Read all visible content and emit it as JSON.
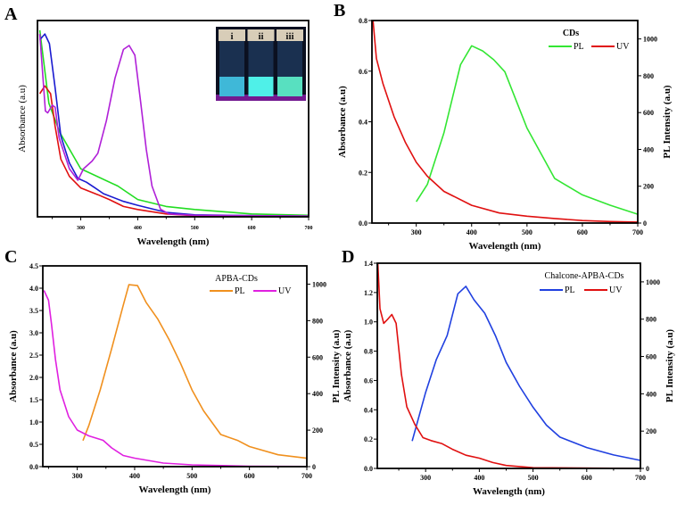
{
  "chart_data": [
    {
      "panel": "A",
      "type": "line",
      "xlabel": "Wavelength (nm)",
      "ylabel": "Absorbance (a.u)",
      "xlim": [
        224,
        700
      ],
      "ylim": [
        0,
        1.02
      ],
      "xticks": [
        300,
        400,
        500,
        600,
        700
      ],
      "yticks": [],
      "grid": false,
      "inset_labels": [
        "i",
        "ii",
        "iii"
      ],
      "series": [
        {
          "color": "#22dd22",
          "x": [
            228,
            244,
            263,
            300,
            365,
            400,
            450,
            500,
            600,
            700
          ],
          "y": [
            0.97,
            0.59,
            0.44,
            0.25,
            0.16,
            0.09,
            0.054,
            0.038,
            0.015,
            0.008
          ]
        },
        {
          "color": "#1a1ad0",
          "x": [
            228,
            237,
            245,
            255,
            265,
            280,
            295,
            310,
            325,
            340,
            375,
            400,
            450,
            500,
            700
          ],
          "y": [
            0.92,
            0.95,
            0.9,
            0.67,
            0.42,
            0.28,
            0.2,
            0.18,
            0.15,
            0.12,
            0.08,
            0.06,
            0.023,
            0.01,
            0.003
          ]
        },
        {
          "color": "#e01010",
          "x": [
            228,
            237,
            247,
            255,
            265,
            280,
            300,
            330,
            350,
            375,
            400,
            450,
            500,
            700
          ],
          "y": [
            0.64,
            0.68,
            0.64,
            0.47,
            0.3,
            0.21,
            0.15,
            0.115,
            0.09,
            0.054,
            0.038,
            0.015,
            0.006,
            0.002
          ]
        },
        {
          "color": "#b020d8",
          "x": [
            228,
            238,
            242,
            250,
            255,
            262,
            280,
            295,
            305,
            320,
            330,
            345,
            360,
            375,
            385,
            395,
            405,
            415,
            425,
            440,
            455,
            500,
            700
          ],
          "y": [
            0.95,
            0.55,
            0.54,
            0.58,
            0.57,
            0.41,
            0.25,
            0.19,
            0.25,
            0.29,
            0.33,
            0.5,
            0.72,
            0.87,
            0.89,
            0.84,
            0.6,
            0.35,
            0.16,
            0.04,
            0.015,
            0.008,
            0.004
          ]
        }
      ]
    },
    {
      "panel": "B",
      "type": "line",
      "title": "CDs",
      "xlabel": "Wavelength (nm)",
      "ylabel": "Absorbance (a.u)",
      "y2label": "PL Intensity (a.u)",
      "xlim": [
        220,
        700
      ],
      "ylim": [
        0,
        0.8
      ],
      "y2lim": [
        0,
        1100
      ],
      "xticks": [
        300,
        400,
        500,
        600,
        700
      ],
      "yticks": [
        "0.0",
        "0.2",
        "0.4",
        "0.6",
        "0.8"
      ],
      "y2ticks": [
        "0",
        "200",
        "400",
        "600",
        "800",
        "1000"
      ],
      "legend_position": "top-right",
      "grid": false,
      "series": [
        {
          "name": "PL",
          "axis": "right",
          "color": "#33e633",
          "x": [
            300,
            320,
            350,
            380,
            400,
            420,
            440,
            460,
            500,
            550,
            600,
            650,
            700
          ],
          "y": [
            116,
            210,
            490,
            860,
            963,
            935,
            887,
            822,
            516,
            242,
            153,
            97,
            48
          ]
        },
        {
          "name": "UV",
          "axis": "left",
          "color": "#e01010",
          "x": [
            222,
            228,
            240,
            260,
            280,
            300,
            320,
            350,
            400,
            450,
            500,
            550,
            600,
            650,
            700
          ],
          "y": [
            0.8,
            0.65,
            0.55,
            0.42,
            0.32,
            0.24,
            0.185,
            0.125,
            0.07,
            0.04,
            0.027,
            0.018,
            0.01,
            0.006,
            0.004
          ]
        }
      ]
    },
    {
      "panel": "C",
      "type": "line",
      "title": "APBA-CDs",
      "xlabel": "Wavelength (nm)",
      "ylabel": "Absorbance (a.u)",
      "y2label": "PL Intensity (a.u)",
      "xlim": [
        240,
        700
      ],
      "ylim": [
        0,
        4.5
      ],
      "y2lim": [
        0,
        1100
      ],
      "xticks": [
        300,
        400,
        500,
        600,
        700
      ],
      "yticks": [
        "0.0",
        "0.5",
        "1.0",
        "1.5",
        "2.0",
        "2.5",
        "3.0",
        "3.5",
        "4.0",
        "4.5"
      ],
      "y2ticks": [
        "0",
        "200",
        "400",
        "600",
        "800",
        "1000"
      ],
      "legend_position": "top-right",
      "grid": false,
      "series": [
        {
          "name": "PL",
          "axis": "right",
          "color": "#f0901e",
          "x": [
            310,
            320,
            340,
            360,
            380,
            390,
            405,
            420,
            440,
            460,
            480,
            500,
            520,
            550,
            580,
            600,
            650,
            700
          ],
          "y": [
            143,
            224,
            420,
            647,
            883,
            997,
            992,
            900,
            810,
            696,
            566,
            420,
            306,
            176,
            143,
            110,
            65,
            46
          ]
        },
        {
          "name": "UV",
          "axis": "left",
          "color": "#e020e0",
          "x": [
            242,
            250,
            255,
            262,
            270,
            285,
            300,
            320,
            345,
            360,
            380,
            400,
            450,
            500,
            600,
            700
          ],
          "y": [
            3.95,
            3.73,
            3.2,
            2.4,
            1.72,
            1.12,
            0.82,
            0.69,
            0.59,
            0.42,
            0.25,
            0.19,
            0.08,
            0.04,
            0.01,
            0.005
          ]
        }
      ]
    },
    {
      "panel": "D",
      "type": "line",
      "title": "Chalcone-APBA-CDs",
      "xlabel": "Wavelength (nm)",
      "ylabel": "Absorbance (a.u)",
      "y2label": "PL Intensity (a.u)",
      "xlim": [
        210,
        700
      ],
      "ylim": [
        0,
        1.4
      ],
      "y2lim": [
        0,
        1100
      ],
      "xticks": [
        300,
        400,
        500,
        600,
        700
      ],
      "yticks": [
        "0.0",
        "0.2",
        "0.4",
        "0.6",
        "0.8",
        "1.0",
        "1.2",
        "1.4"
      ],
      "y2ticks": [
        "0",
        "200",
        "400",
        "600",
        "800",
        "1000"
      ],
      "legend_position": "top-right",
      "grid": false,
      "series": [
        {
          "name": "PL",
          "axis": "right",
          "color": "#2040e0",
          "x": [
            275,
            300,
            320,
            340,
            360,
            375,
            390,
            410,
            430,
            450,
            475,
            500,
            525,
            550,
            600,
            650,
            700
          ],
          "y": [
            147,
            408,
            584,
            712,
            936,
            976,
            904,
            832,
            712,
            568,
            440,
            328,
            232,
            168,
            112,
            72,
            43
          ]
        },
        {
          "name": "UV",
          "axis": "left",
          "color": "#e01010",
          "x": [
            211,
            215,
            222,
            230,
            237,
            245,
            255,
            265,
            280,
            295,
            310,
            330,
            350,
            375,
            400,
            425,
            450,
            500,
            700
          ],
          "y": [
            1.4,
            1.09,
            0.99,
            1.02,
            1.05,
            0.99,
            0.64,
            0.42,
            0.3,
            0.21,
            0.19,
            0.17,
            0.13,
            0.09,
            0.07,
            0.04,
            0.02,
            0.005,
            0.0
          ]
        }
      ]
    }
  ]
}
